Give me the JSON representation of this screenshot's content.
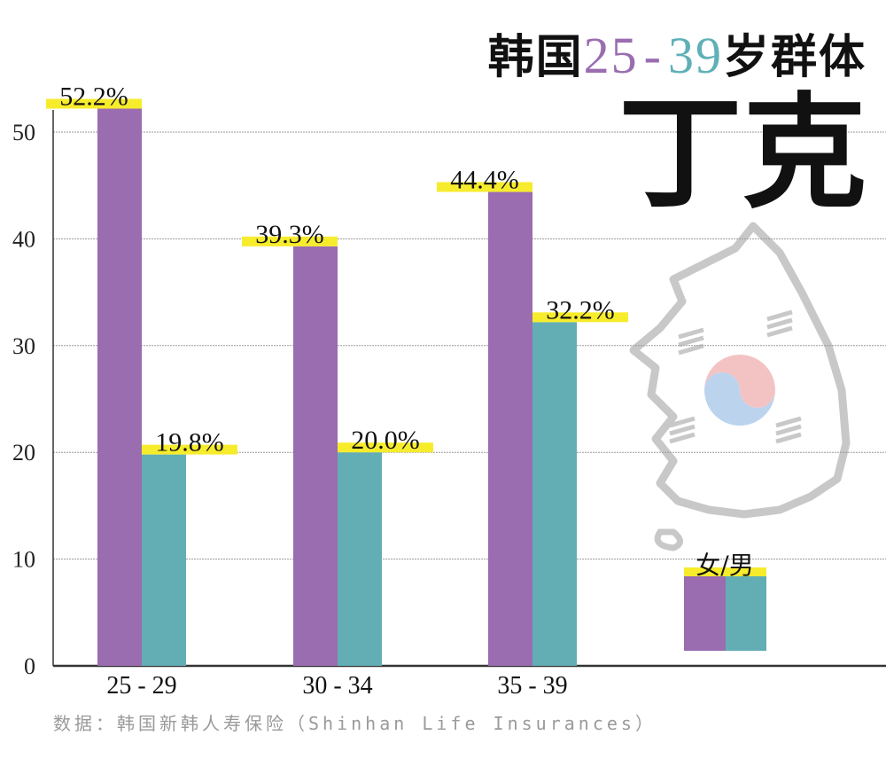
{
  "title": {
    "prefix": "韩国",
    "age_from": "25",
    "dash": "-",
    "age_to": "39",
    "suffix": "岁群体",
    "main": "丁克"
  },
  "source": "数据：韩国新韩人寿保险（Shinhan Life Insurances）",
  "colors": {
    "female": "#9a6cb0",
    "male": "#62aeb4",
    "highlight": "#f7ec2c"
  },
  "chart_data": {
    "type": "bar",
    "categories": [
      "25 - 29",
      "30 - 34",
      "35 - 39"
    ],
    "series": [
      {
        "key": "female",
        "values": [
          52.2,
          39.3,
          44.4
        ],
        "labels": [
          "52.2%",
          "39.3%",
          "44.4%"
        ]
      },
      {
        "key": "male",
        "values": [
          19.8,
          20.0,
          32.2
        ],
        "labels": [
          "19.8%",
          "20.0%",
          "32.2%"
        ]
      }
    ],
    "legend_label": "女/男",
    "legend_placement": "bottom-right",
    "yticks": [
      0,
      10,
      20,
      30,
      40,
      50
    ],
    "ylim": [
      0,
      50
    ],
    "grid": true,
    "decoration": "korea-map-with-taegeuk"
  }
}
